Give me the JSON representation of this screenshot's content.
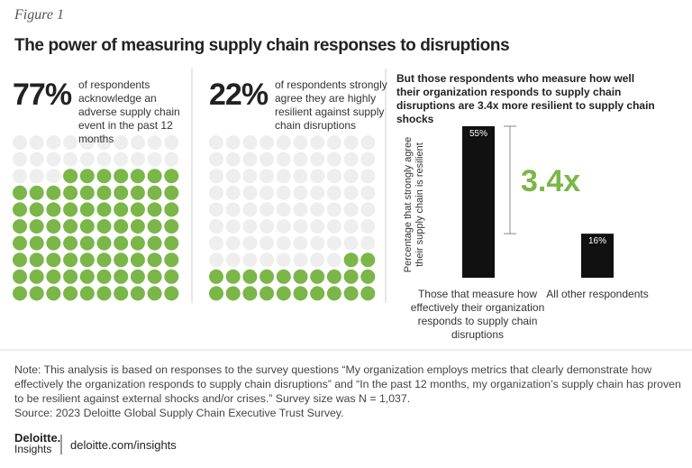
{
  "header": {
    "figure": "Figure 1",
    "title": "The power of measuring supply chain responses to disruptions"
  },
  "chart_data": [
    {
      "type": "waffle",
      "values": [
        77
      ],
      "value_labels": [
        "77%"
      ],
      "description": "of respondents acknowledge an adverse supply chain event in the past 12 months",
      "color": "#7ab648"
    },
    {
      "type": "waffle",
      "values": [
        22
      ],
      "value_labels": [
        "22%"
      ],
      "description": "of respondents strongly agree they are highly resilient against supply chain disruptions",
      "color": "#7ab648"
    },
    {
      "type": "bar",
      "title": "But those respondents who measure how well their organization responds to supply chain disruptions are",
      "title_emphasis": "3.4x more resilient to supply chain shocks",
      "y_label": "Percentage that strongly agree their supply chain is resilient",
      "categories": [
        "Those that measure how effectively their organization responds to supply chain disruptions",
        "All other respondents"
      ],
      "values": [
        55,
        16
      ],
      "value_labels": [
        "55%",
        "16%"
      ],
      "color": "#111111",
      "ylim": [
        0,
        55
      ],
      "annotation": "3.4x",
      "annotation_color": "#7ab648"
    }
  ],
  "footer": {
    "note": "Note: This analysis is based on responses to the survey questions “My organization employs metrics that clearly demonstrate how effectively the organization responds to supply chain disruptions” and “In the past 12 months, my organization’s supply chain has proven to be resilient against external shocks and/or crises.” Survey size was N = 1,037.",
    "source": "Source: 2023 Deloitte Global Supply Chain Executive Trust Survey.",
    "logo": "Deloitte.",
    "logo_sub": "Insights",
    "url": "deloitte.com/insights"
  }
}
